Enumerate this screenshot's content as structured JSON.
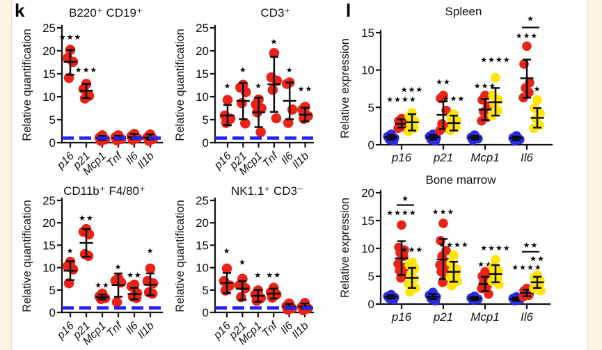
{
  "panels": {
    "k": "k",
    "l": "l"
  },
  "colors": {
    "red": "#ea2318",
    "blue": "#2b2be0",
    "yellow": "#ffe600",
    "baseline": "#2222f2",
    "axis": "#111111",
    "page_border": "#fcf4e3"
  },
  "chart_data": [
    {
      "id": "b220",
      "type": "scatter",
      "panel": "k",
      "title": "B220⁺  CD19⁺",
      "ylabel": "Relative quantification",
      "ylim": [
        0,
        25
      ],
      "yticks": [
        0,
        5,
        10,
        15,
        20,
        25
      ],
      "baseline": 1,
      "rotated_labels": true,
      "grouped": false,
      "categories": [
        "p16",
        "p21",
        "Mcp1",
        "Tnf",
        "Il6",
        "Il1b"
      ],
      "series": [
        {
          "cat": "p16",
          "color": "red",
          "points": [
            20.2,
            18.4,
            17.6,
            14.1
          ],
          "mean": 17.6,
          "err": [
            14.8,
            20.2
          ],
          "stars": "***",
          "stars_y": 23.0
        },
        {
          "cat": "p21",
          "color": "red",
          "points": [
            12.8,
            11.7,
            10.2,
            9.6
          ],
          "mean": 11.3,
          "err": [
            9.7,
            12.8
          ],
          "stars": "***",
          "stars_y": 15.9
        },
        {
          "cat": "Mcp1",
          "color": "red",
          "points": [
            1.6,
            1.1,
            0.7,
            0.4
          ],
          "mean": 1.0,
          "err": [
            0.6,
            1.5
          ]
        },
        {
          "cat": "Tnf",
          "color": "red",
          "points": [
            1.6,
            1.2,
            0.8,
            0.5
          ],
          "mean": 1.0,
          "err": [
            0.7,
            1.5
          ]
        },
        {
          "cat": "Il6",
          "color": "red",
          "points": [
            1.9,
            1.4,
            1.0,
            0.6
          ],
          "mean": 1.2,
          "err": [
            0.8,
            1.9
          ]
        },
        {
          "cat": "Il1b",
          "color": "red",
          "points": [
            1.8,
            1.2,
            0.8,
            0.4
          ],
          "mean": 1.1,
          "err": [
            0.7,
            1.8
          ]
        }
      ],
      "brackets": []
    },
    {
      "id": "cd3",
      "type": "scatter",
      "panel": "k",
      "title": "CD3⁺",
      "ylabel": "Relative quantification",
      "ylim": [
        0,
        25
      ],
      "yticks": [
        0,
        5,
        10,
        15,
        20,
        25
      ],
      "baseline": 1,
      "rotated_labels": true,
      "grouped": false,
      "categories": [
        "p16",
        "p21",
        "Mcp1",
        "Tnf",
        "Il6",
        "Il1b"
      ],
      "series": [
        {
          "cat": "p16",
          "color": "red",
          "points": [
            9.3,
            5.9,
            5.2,
            4.3
          ],
          "mean": 5.9,
          "err": [
            3.8,
            8.2
          ],
          "stars": "*",
          "stars_y": 12.4
        },
        {
          "cat": "p21",
          "color": "red",
          "points": [
            12.6,
            12.0,
            11.0,
            8.6,
            4.2
          ],
          "mean": 9.1,
          "err": [
            5.1,
            13.0
          ],
          "stars": "*",
          "stars_y": 15.9
        },
        {
          "cat": "Mcp1",
          "color": "red",
          "points": [
            9.4,
            8.3,
            7.5,
            6.6,
            2.3
          ],
          "mean": 6.6,
          "err": [
            3.4,
            9.8
          ],
          "stars": "*",
          "stars_y": 12.4
        },
        {
          "cat": "Tnf",
          "color": "red",
          "points": [
            19.5,
            14.2,
            13.5,
            11.5,
            5.3
          ],
          "mean": 12.7,
          "err": [
            6.7,
            18.7
          ],
          "stars": "*",
          "stars_y": 22.0
        },
        {
          "cat": "Il6",
          "color": "red",
          "points": [
            13.1,
            12.8,
            7.2,
            4.3
          ],
          "mean": 9.1,
          "err": [
            5.1,
            13.1
          ],
          "stars": "*",
          "stars_y": 15.9
        },
        {
          "cat": "Il1b",
          "color": "red",
          "points": [
            7.8,
            7.2,
            5.8,
            5.2
          ],
          "mean": 6.1,
          "err": [
            4.6,
            7.6
          ],
          "stars": "**",
          "stars_y": 11.7
        }
      ],
      "brackets": []
    },
    {
      "id": "spleen",
      "type": "scatter",
      "panel": "l",
      "title": "Spleen",
      "ylabel": "Relative expression",
      "ylim": [
        0,
        15
      ],
      "yticks": [
        0,
        5,
        10,
        15
      ],
      "baseline": null,
      "rotated_labels": false,
      "grouped": true,
      "categories": [
        "p16",
        "p21",
        "Mcp1",
        "Il6"
      ],
      "series": [
        {
          "cat": "p16",
          "color": "blue",
          "points": [
            1.4,
            1.1,
            0.9,
            0.7,
            0.5
          ],
          "mean": 1.0,
          "err": [
            0.7,
            1.3
          ]
        },
        {
          "cat": "p16",
          "color": "red",
          "points": [
            3.5,
            3.2,
            3.0,
            2.7,
            2.4,
            2.2
          ],
          "mean": 2.8,
          "err": [
            2.3,
            3.4
          ],
          "stars": "****",
          "stars_y": 6.1
        },
        {
          "cat": "p16",
          "color": "yellow",
          "points": [
            4.3,
            3.8,
            3.2,
            2.8,
            2.2,
            1.8
          ],
          "mean": 3.0,
          "err": [
            1.9,
            4.1
          ],
          "stars": "***",
          "stars_y": 7.4
        },
        {
          "cat": "p21",
          "color": "blue",
          "points": [
            1.4,
            1.1,
            0.9,
            0.7,
            0.5
          ],
          "mean": 1.0,
          "err": [
            0.7,
            1.3
          ]
        },
        {
          "cat": "p21",
          "color": "red",
          "points": [
            6.6,
            6.2,
            4.6,
            2.8,
            2.3,
            1.9
          ],
          "mean": 4.0,
          "err": [
            2.1,
            5.8
          ],
          "stars": "**",
          "stars_y": 8.4
        },
        {
          "cat": "p21",
          "color": "yellow",
          "points": [
            4.1,
            3.7,
            3.2,
            2.8,
            2.3,
            1.9
          ],
          "mean": 2.9,
          "err": [
            1.9,
            3.9
          ],
          "stars": "***",
          "stars_y": 6.2
        },
        {
          "cat": "Mcp1",
          "color": "blue",
          "points": [
            1.3,
            1.0,
            0.8,
            0.6
          ],
          "mean": 0.95,
          "err": [
            0.7,
            1.2
          ]
        },
        {
          "cat": "Mcp1",
          "color": "red",
          "points": [
            6.6,
            6.0,
            5.2,
            4.4,
            3.7,
            3.2
          ],
          "mean": 4.7,
          "err": [
            3.3,
            6.1
          ],
          "stars": "***",
          "stars_y": 7.9
        },
        {
          "cat": "Mcp1",
          "color": "yellow",
          "points": [
            9.0,
            6.6,
            6.0,
            5.4,
            4.6,
            3.9
          ],
          "mean": 5.7,
          "err": [
            3.9,
            7.6
          ],
          "stars": "****",
          "stars_y": 11.4
        },
        {
          "cat": "Il6",
          "color": "blue",
          "points": [
            1.2,
            0.9,
            0.7,
            0.5
          ],
          "mean": 0.9,
          "err": [
            0.6,
            1.1
          ]
        },
        {
          "cat": "Il6",
          "color": "red",
          "points": [
            13.2,
            10.8,
            8.3,
            7.6,
            7.0,
            6.3
          ],
          "mean": 8.9,
          "err": [
            6.3,
            11.4
          ],
          "stars": "***",
          "stars_y": 14.6
        },
        {
          "cat": "Il6",
          "color": "yellow",
          "points": [
            6.0,
            4.9,
            4.2,
            3.5,
            2.6,
            2.2
          ],
          "mean": 3.6,
          "err": [
            2.3,
            4.9
          ],
          "stars": "*",
          "stars_y": 7.5
        }
      ],
      "brackets": [
        {
          "cat": "Il6",
          "from": "red",
          "to": "yellow",
          "stars": "*",
          "line_y": 15.7,
          "stars_y": 16.9
        }
      ]
    },
    {
      "id": "cd11b",
      "type": "scatter",
      "panel": "k",
      "title": "CD11b⁺  F4/80⁺",
      "ylabel": "Relative quantification",
      "ylim": [
        0,
        25
      ],
      "yticks": [
        0,
        5,
        10,
        15,
        20,
        25
      ],
      "baseline": 1,
      "rotated_labels": true,
      "grouped": false,
      "categories": [
        "p16",
        "p21",
        "Mcp1",
        "Tnf",
        "Il6",
        "Il1b"
      ],
      "series": [
        {
          "cat": "p16",
          "color": "red",
          "points": [
            11.3,
            10.3,
            9.6,
            6.5
          ],
          "mean": 9.3,
          "err": [
            7.2,
            11.4
          ],
          "stars": "*",
          "stars_y": 13.8
        },
        {
          "cat": "p21",
          "color": "red",
          "points": [
            18.6,
            18.0,
            17.4,
            13.0,
            12.6
          ],
          "mean": 15.5,
          "err": [
            12.4,
            18.6
          ],
          "stars": "**",
          "stars_y": 21.1
        },
        {
          "cat": "Mcp1",
          "color": "red",
          "points": [
            4.2,
            3.6,
            3.2,
            3.0
          ],
          "mean": 3.4,
          "err": [
            2.9,
            4.0
          ],
          "stars": "**",
          "stars_y": 6.1
        },
        {
          "cat": "Tnf",
          "color": "red",
          "points": [
            7.6,
            7.1,
            6.7,
            2.3
          ],
          "mean": 6.1,
          "err": [
            3.5,
            8.7
          ],
          "stars": "*",
          "stars_y": 10.2
        },
        {
          "cat": "Il6",
          "color": "red",
          "points": [
            6.2,
            5.8,
            4.3,
            3.5,
            3.2
          ],
          "mean": 4.1,
          "err": [
            2.9,
            5.5
          ],
          "stars": "**",
          "stars_y": 8.4
        },
        {
          "cat": "Il1b",
          "color": "red",
          "points": [
            9.8,
            7.0,
            6.5,
            4.5,
            4.2
          ],
          "mean": 6.2,
          "err": [
            3.8,
            8.7
          ],
          "stars": "*",
          "stars_y": 13.8
        }
      ],
      "brackets": []
    },
    {
      "id": "nk11",
      "type": "scatter",
      "panel": "k",
      "title": "NK1.1⁺  CD3⁻",
      "ylabel": "Relative quantification",
      "ylim": [
        0,
        25
      ],
      "yticks": [
        0,
        5,
        10,
        15,
        20,
        25
      ],
      "baseline": 1,
      "rotated_labels": true,
      "grouped": false,
      "categories": [
        "p16",
        "p21",
        "Mcp1",
        "Tnf",
        "Il6",
        "Il1b"
      ],
      "series": [
        {
          "cat": "p16",
          "color": "red",
          "points": [
            9.8,
            7.0,
            6.0,
            4.9
          ],
          "mean": 6.6,
          "err": [
            4.3,
            8.8
          ],
          "stars": "*",
          "stars_y": 13.7
        },
        {
          "cat": "p21",
          "color": "red",
          "points": [
            7.5,
            6.1,
            5.4,
            3.4
          ],
          "mean": 5.3,
          "err": [
            2.8,
            7.0
          ],
          "stars": "*",
          "stars_y": 11.2
        },
        {
          "cat": "Mcp1",
          "color": "red",
          "points": [
            4.9,
            4.0,
            3.2,
            2.6
          ],
          "mean": 3.7,
          "err": [
            2.4,
            5.0
          ],
          "stars": "*",
          "stars_y": 8.4
        },
        {
          "cat": "Tnf",
          "color": "red",
          "points": [
            5.5,
            4.5,
            4.0,
            3.3
          ],
          "mean": 4.2,
          "err": [
            3.1,
            5.3
          ],
          "stars": "**",
          "stars_y": 8.4
        },
        {
          "cat": "Il6",
          "color": "red",
          "points": [
            2.0,
            1.4,
            0.9,
            0.6
          ],
          "mean": 1.3,
          "err": [
            0.8,
            1.9
          ]
        },
        {
          "cat": "Il1b",
          "color": "red",
          "points": [
            2.1,
            1.3,
            0.9,
            0.5
          ],
          "mean": 1.3,
          "err": [
            0.8,
            2.0
          ]
        }
      ],
      "brackets": []
    },
    {
      "id": "bm",
      "type": "scatter",
      "panel": "l",
      "title": "Bone marrow",
      "ylabel": "Relative expression",
      "ylim": [
        0,
        20
      ],
      "yticks": [
        0,
        5,
        10,
        15,
        20
      ],
      "baseline": null,
      "rotated_labels": false,
      "grouped": true,
      "categories": [
        "p16",
        "p21",
        "Mcp1",
        "Il6"
      ],
      "series": [
        {
          "cat": "p16",
          "color": "blue",
          "points": [
            1.7,
            1.4,
            1.2,
            1.0,
            0.8
          ],
          "mean": 1.3,
          "err": [
            1.0,
            1.6
          ]
        },
        {
          "cat": "p16",
          "color": "red",
          "points": [
            14.2,
            10.2,
            9.7,
            9.2,
            8.6,
            7.2,
            6.6,
            6.0,
            5.2,
            4.7
          ],
          "mean": 8.2,
          "err": [
            5.2,
            11.3
          ],
          "stars": "****",
          "stars_y": 16.4
        },
        {
          "cat": "p16",
          "color": "yellow",
          "points": [
            7.5,
            7.0,
            6.4,
            5.1,
            4.6,
            3.6,
            2.9,
            2.2
          ],
          "mean": 4.7,
          "err": [
            2.9,
            6.5
          ],
          "stars": "***",
          "stars_y": 9.8
        },
        {
          "cat": "p21",
          "color": "blue",
          "points": [
            2.1,
            1.6,
            1.3,
            1.0,
            0.6
          ],
          "mean": 1.3,
          "err": [
            0.9,
            1.8
          ]
        },
        {
          "cat": "p21",
          "color": "red",
          "points": [
            14.5,
            11.4,
            9.6,
            8.6,
            7.6,
            7.0,
            6.4,
            5.8,
            4.6,
            3.9
          ],
          "mean": 8.0,
          "err": [
            4.5,
            11.7
          ],
          "stars": "***",
          "stars_y": 16.6
        },
        {
          "cat": "p21",
          "color": "yellow",
          "points": [
            8.8,
            7.4,
            6.3,
            5.9,
            5.4,
            4.8,
            4.1,
            3.3
          ],
          "mean": 5.8,
          "err": [
            4.0,
            7.6
          ],
          "stars": "****",
          "stars_y": 10.7
        },
        {
          "cat": "Mcp1",
          "color": "blue",
          "points": [
            1.4,
            1.1,
            0.9,
            0.7
          ],
          "mean": 1.0,
          "err": [
            0.7,
            1.3
          ]
        },
        {
          "cat": "Mcp1",
          "color": "red",
          "points": [
            5.8,
            5.0,
            4.4,
            4.0,
            3.3,
            2.8,
            1.8
          ],
          "mean": 3.6,
          "err": [
            2.3,
            4.9
          ],
          "stars": "**",
          "stars_y": 7.2
        },
        {
          "cat": "Mcp1",
          "color": "yellow",
          "points": [
            8.0,
            6.6,
            6.0,
            5.5,
            4.8,
            4.1,
            3.5
          ],
          "mean": 5.4,
          "err": [
            3.9,
            7.0
          ],
          "stars": "****",
          "stars_y": 10.1
        },
        {
          "cat": "Il6",
          "color": "blue",
          "points": [
            1.3,
            1.0,
            0.8,
            0.6
          ],
          "mean": 0.9,
          "err": [
            0.6,
            1.2
          ]
        },
        {
          "cat": "Il6",
          "color": "red",
          "points": [
            2.8,
            2.4,
            2.1,
            1.9,
            1.6,
            1.3
          ],
          "mean": 2.0,
          "err": [
            1.4,
            2.6
          ],
          "stars": "****",
          "stars_y": 6.6
        },
        {
          "cat": "Il6",
          "color": "yellow",
          "points": [
            5.2,
            4.8,
            4.2,
            3.9,
            3.3,
            2.8,
            2.4
          ],
          "mean": 3.9,
          "err": [
            2.9,
            4.9
          ],
          "stars": "**",
          "stars_y": 8.2
        }
      ],
      "brackets": [
        {
          "cat": "p16",
          "from": "red",
          "to": "yellow",
          "stars": "*",
          "line_y": 17.8,
          "stars_y": 19.0
        },
        {
          "cat": "Il6",
          "from": "red",
          "to": "yellow",
          "stars": "**",
          "line_y": 9.4,
          "stars_y": 10.6
        }
      ]
    }
  ]
}
